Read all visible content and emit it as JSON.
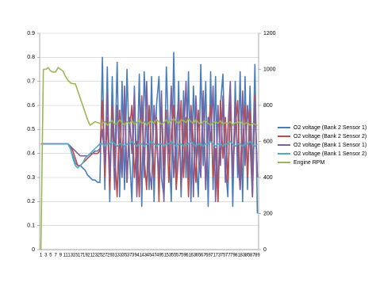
{
  "chart_data": {
    "type": "line",
    "categories": [
      1,
      null,
      3,
      null,
      5,
      null,
      7,
      null,
      9,
      null,
      11,
      null,
      13,
      null,
      15,
      null,
      17,
      null,
      19,
      null,
      21,
      null,
      23,
      null,
      25,
      null,
      27,
      null,
      29,
      null,
      31,
      null,
      33,
      null,
      35,
      null,
      37,
      null,
      39,
      null,
      41,
      null,
      43,
      null,
      45,
      null,
      47,
      null,
      49,
      null,
      51,
      null,
      53,
      null,
      55,
      null,
      57,
      null,
      59,
      null,
      61,
      null,
      63,
      null,
      65,
      null,
      67,
      null,
      69,
      null,
      71,
      null,
      73,
      null,
      75,
      null,
      77,
      null,
      79,
      null,
      81,
      null,
      83,
      null,
      85,
      null,
      87,
      null,
      89
    ],
    "ylim": [
      0,
      0.9
    ],
    "yticks": [
      0,
      0.1,
      0.2,
      0.3,
      0.4,
      0.5,
      0.6,
      0.7,
      0.8,
      0.9
    ],
    "y2lim": [
      0,
      1200
    ],
    "y2ticks": [
      0,
      200,
      400,
      600,
      800,
      1000,
      1200
    ],
    "grid": true,
    "legend": "right",
    "series": [
      {
        "name": "O2 voltage (Bank 2  Sensor 1)",
        "color": "#4a7ebb",
        "values": [
          0.44,
          0.44,
          0.44,
          0.44,
          0.44,
          0.44,
          0.44,
          0.44,
          0.44,
          0.44,
          0.44,
          0.44,
          0.42,
          0.39,
          0.36,
          0.35,
          0.35,
          0.34,
          0.33,
          0.31,
          0.3,
          0.29,
          0.29,
          0.28,
          0.28,
          0.8,
          0.25,
          0.76,
          0.2,
          0.72,
          0.35,
          0.78,
          0.22,
          0.7,
          0.25,
          0.75,
          0.4,
          0.2,
          0.68,
          0.3,
          0.73,
          0.18,
          0.74,
          0.5,
          0.25,
          0.72,
          0.2,
          0.6,
          0.72,
          0.3,
          0.22,
          0.76,
          0.45,
          0.2,
          0.82,
          0.3,
          0.7,
          0.22,
          0.66,
          0.3,
          0.74,
          0.2,
          0.68,
          0.4,
          0.22,
          0.77,
          0.35,
          0.7,
          0.18,
          0.74,
          0.25,
          0.72,
          0.2,
          0.6,
          0.73,
          0.35,
          0.22,
          0.65,
          0.18,
          0.7,
          0.3,
          0.74,
          0.2,
          0.72,
          0.25,
          0.68,
          0.3,
          0.77,
          0.15
        ]
      },
      {
        "name": "O2 voltage (Bank 2  Sensor 2)",
        "color": "#be4b48",
        "values": [
          0.44,
          0.44,
          0.44,
          0.44,
          0.44,
          0.44,
          0.44,
          0.44,
          0.44,
          0.44,
          0.44,
          0.44,
          0.43,
          0.41,
          0.38,
          0.35,
          0.35,
          0.36,
          0.37,
          0.38,
          0.39,
          0.4,
          0.4,
          0.4,
          0.41,
          0.62,
          0.3,
          0.55,
          0.25,
          0.6,
          0.4,
          0.22,
          0.58,
          0.35,
          0.62,
          0.28,
          0.5,
          0.6,
          0.3,
          0.45,
          0.22,
          0.64,
          0.38,
          0.25,
          0.6,
          0.42,
          0.3,
          0.55,
          0.2,
          0.62,
          0.35,
          0.58,
          0.28,
          0.48,
          0.6,
          0.25,
          0.4,
          0.62,
          0.3,
          0.55,
          0.22,
          0.6,
          0.45,
          0.28,
          0.58,
          0.35,
          0.64,
          0.25,
          0.5,
          0.6,
          0.3,
          0.42,
          0.2,
          0.62,
          0.38,
          0.55,
          0.28,
          0.6,
          0.32,
          0.5,
          0.62,
          0.25,
          0.45,
          0.6,
          0.3,
          0.58,
          0.22,
          0.64,
          0.3
        ]
      },
      {
        "name": "O2 voltage (Bank 1  Sensor 1)",
        "color": "#7d60a0",
        "values": [
          0.44,
          0.44,
          0.44,
          0.44,
          0.44,
          0.44,
          0.44,
          0.44,
          0.44,
          0.44,
          0.44,
          0.44,
          0.43,
          0.42,
          0.41,
          0.4,
          0.39,
          0.39,
          0.39,
          0.39,
          0.4,
          0.4,
          0.41,
          0.41,
          0.42,
          0.5,
          0.35,
          0.65,
          0.3,
          0.55,
          0.25,
          0.6,
          0.45,
          0.3,
          0.68,
          0.28,
          0.55,
          0.4,
          0.65,
          0.22,
          0.5,
          0.62,
          0.3,
          0.7,
          0.35,
          0.25,
          0.6,
          0.45,
          0.3,
          0.66,
          0.2,
          0.55,
          0.4,
          0.68,
          0.3,
          0.5,
          0.62,
          0.25,
          0.45,
          0.7,
          0.3,
          0.58,
          0.22,
          0.64,
          0.4,
          0.3,
          0.66,
          0.25,
          0.55,
          0.45,
          0.68,
          0.2,
          0.6,
          0.35,
          0.64,
          0.28,
          0.5,
          0.7,
          0.3,
          0.62,
          0.4,
          0.25,
          0.66,
          0.35,
          0.6,
          0.45,
          0.22,
          0.62,
          0.3
        ]
      },
      {
        "name": "O2 voltage (Bank 1  Sensor 2)",
        "color": "#4bacc6",
        "values": [
          0.44,
          0.44,
          0.44,
          0.44,
          0.44,
          0.44,
          0.44,
          0.44,
          0.44,
          0.44,
          0.44,
          0.44,
          0.42,
          0.38,
          0.35,
          0.34,
          0.35,
          0.36,
          0.38,
          0.39,
          0.4,
          0.41,
          0.42,
          0.43,
          0.44,
          0.44,
          0.43,
          0.44,
          0.44,
          0.45,
          0.44,
          0.43,
          0.44,
          0.44,
          0.43,
          0.44,
          0.44,
          0.45,
          0.44,
          0.43,
          0.44,
          0.44,
          0.43,
          0.44,
          0.44,
          0.45,
          0.44,
          0.43,
          0.44,
          0.44,
          0.43,
          0.44,
          0.44,
          0.45,
          0.44,
          0.43,
          0.44,
          0.44,
          0.43,
          0.44,
          0.44,
          0.45,
          0.44,
          0.43,
          0.44,
          0.44,
          0.43,
          0.44,
          0.44,
          0.45,
          0.44,
          0.43,
          0.44,
          0.44,
          0.43,
          0.44,
          0.44,
          0.45,
          0.44,
          0.43,
          0.44,
          0.44,
          0.43,
          0.44,
          0.44,
          0.45,
          0.44,
          0.43,
          0.44
        ]
      },
      {
        "name": "Engine RPM",
        "color": "#98b954",
        "axis": "y2",
        "values": [
          0,
          1000,
          1000,
          1010,
          990,
          985,
          985,
          1010,
          1000,
          990,
          960,
          940,
          925,
          920,
          920,
          880,
          840,
          800,
          760,
          720,
          690,
          700,
          710,
          705,
          700,
          700,
          710,
          690,
          705,
          715,
          695,
          700,
          720,
          705,
          690,
          710,
          700,
          715,
          695,
          705,
          720,
          700,
          710,
          690,
          705,
          715,
          700,
          720,
          710,
          695,
          705,
          720,
          700,
          715,
          725,
          710,
          700,
          720,
          715,
          705,
          725,
          710,
          700,
          720,
          705,
          695,
          710,
          715,
          700,
          690,
          705,
          710,
          700,
          715,
          695,
          705,
          700,
          710,
          690,
          705,
          700,
          715,
          695,
          700,
          705,
          690,
          700,
          695,
          690
        ]
      }
    ]
  }
}
